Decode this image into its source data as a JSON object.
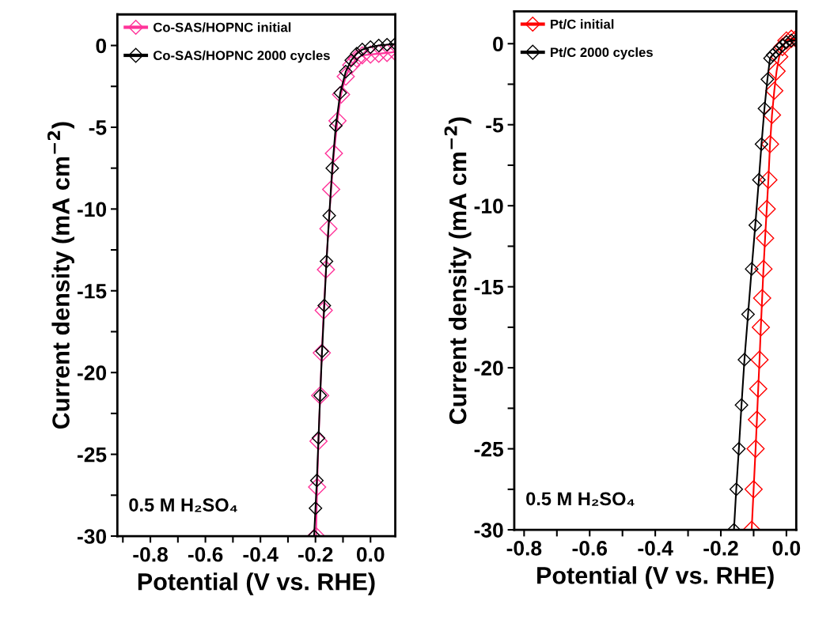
{
  "chart_data": [
    {
      "type": "line",
      "xlabel": "Potential (V vs. RHE)",
      "ylabel": "Current density (mA cm$^{−2}$)",
      "marker": "diamond",
      "line_style": "solid",
      "legend": "top left",
      "grid": false,
      "xlim": [
        -0.92,
        0.09
      ],
      "ylim": [
        -30,
        1.9
      ],
      "xticks": [
        -0.8,
        -0.6,
        -0.4,
        -0.2,
        {
          "value": 0,
          "label": "0.0"
        },
        {
          "value": -0.9,
          "label": null
        },
        {
          "value": -0.7,
          "label": null
        },
        {
          "value": -0.5,
          "label": null
        },
        {
          "value": -0.3,
          "label": null
        },
        {
          "value": -0.1,
          "label": null
        }
      ],
      "yticks": [
        0,
        -5,
        -10,
        -15,
        -20,
        -25,
        -30,
        {
          "value": -2.5,
          "label": null
        },
        {
          "value": -7.5,
          "label": null
        },
        {
          "value": -12.5,
          "label": null
        },
        {
          "value": -17.5,
          "label": null
        },
        {
          "value": -22.5,
          "label": null
        },
        {
          "value": -27.5,
          "label": null
        }
      ],
      "annotations": [
        "0.5 M H₂SO₄"
      ],
      "series": [
        {
          "name": "Co-SAS/HOPNC initial",
          "color": "#ff3399",
          "x": [
            0.09,
            0.06,
            0.03,
            0.0,
            -0.03,
            -0.05,
            -0.07,
            -0.09,
            -0.107,
            -0.12,
            -0.133,
            -0.143,
            -0.153,
            -0.162,
            -0.17,
            -0.177,
            -0.183,
            -0.189,
            -0.194,
            -0.198
          ],
          "values": [
            -0.4,
            -0.45,
            -0.5,
            -0.55,
            -0.6,
            -0.8,
            -1.2,
            -1.9,
            -3.0,
            -4.6,
            -6.6,
            -8.8,
            -11.2,
            -13.7,
            -16.2,
            -18.8,
            -21.4,
            -24.2,
            -27.0,
            -30.0
          ]
        },
        {
          "name": "Co-SAS/HOPNC 2000 cycles",
          "color": "#000000",
          "x": [
            0.09,
            0.06,
            0.03,
            0.0,
            -0.03,
            -0.05,
            -0.07,
            -0.09,
            -0.11,
            -0.126,
            -0.139,
            -0.15,
            -0.16,
            -0.168,
            -0.176,
            -0.183,
            -0.189,
            -0.195,
            -0.2,
            -0.205
          ],
          "values": [
            0.1,
            0.05,
            0.0,
            -0.1,
            -0.25,
            -0.5,
            -0.9,
            -1.6,
            -2.9,
            -4.9,
            -7.5,
            -10.4,
            -13.2,
            -15.9,
            -18.7,
            -21.4,
            -24.0,
            -26.6,
            -28.3,
            -30.0
          ]
        }
      ]
    },
    {
      "type": "line",
      "xlabel": "Potential (V vs. RHE)",
      "ylabel": "Current density (mA cm$^{−2}$)",
      "marker": "diamond",
      "line_style": "solid",
      "legend": "top left",
      "grid": false,
      "xlim": [
        -0.83,
        0.03
      ],
      "ylim": [
        -30,
        2.0
      ],
      "xticks": [
        -0.8,
        -0.6,
        -0.4,
        -0.2,
        {
          "value": 0,
          "label": "0.0"
        },
        {
          "value": -0.7,
          "label": null
        },
        {
          "value": -0.5,
          "label": null
        },
        {
          "value": -0.3,
          "label": null
        },
        {
          "value": -0.1,
          "label": null
        }
      ],
      "yticks": [
        0,
        -5,
        -10,
        -15,
        -20,
        -25,
        -30,
        {
          "value": -2.5,
          "label": null
        },
        {
          "value": -7.5,
          "label": null
        },
        {
          "value": -12.5,
          "label": null
        },
        {
          "value": -17.5,
          "label": null
        },
        {
          "value": -22.5,
          "label": null
        },
        {
          "value": -27.5,
          "label": null
        }
      ],
      "annotations": [
        "0.5 M H₂SO₄"
      ],
      "series": [
        {
          "name": "Pt/C initial",
          "color": "#ff0000",
          "x": [
            0.03,
            0.015,
            0.0,
            -0.012,
            -0.022,
            -0.03,
            -0.037,
            -0.044,
            -0.05,
            -0.055,
            -0.06,
            -0.065,
            -0.07,
            -0.074,
            -0.078,
            -0.082,
            -0.086,
            -0.09,
            -0.094,
            -0.1,
            -0.106
          ],
          "values": [
            0.3,
            0.3,
            0.2,
            -0.2,
            -0.8,
            -1.7,
            -2.9,
            -4.4,
            -6.2,
            -8.4,
            -10.2,
            -12.0,
            -13.9,
            -15.7,
            -17.5,
            -19.5,
            -21.3,
            -23.2,
            -25.0,
            -27.5,
            -30.0
          ]
        },
        {
          "name": "Pt/C 2000 cycles",
          "color": "#000000",
          "x": [
            0.03,
            0.015,
            0.0,
            -0.012,
            -0.022,
            -0.032,
            -0.042,
            -0.05,
            -0.058,
            -0.067,
            -0.076,
            -0.084,
            -0.095,
            -0.106,
            -0.117,
            -0.128,
            -0.137,
            -0.145,
            -0.153,
            -0.16
          ],
          "values": [
            0.2,
            0.2,
            0.1,
            -0.1,
            -0.3,
            -0.5,
            -0.7,
            -0.9,
            -2.2,
            -4.0,
            -6.2,
            -8.4,
            -11.2,
            -13.9,
            -16.7,
            -19.5,
            -22.3,
            -25.0,
            -27.5,
            -30.0
          ]
        }
      ]
    }
  ]
}
